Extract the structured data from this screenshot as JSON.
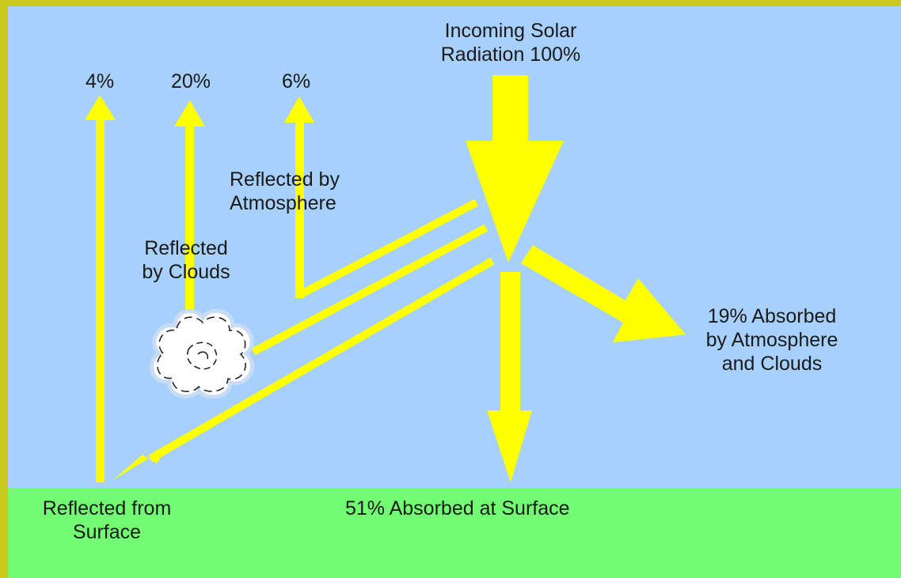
{
  "colors": {
    "frame": "#c8c81e",
    "sky": "#a7d0fc",
    "ground": "#74fb74",
    "arrow": "#ffff00",
    "text": "#1a1a1a"
  },
  "labels": {
    "incoming_line1": "Incoming Solar",
    "incoming_line2": "Radiation 100%",
    "pct_surface": "4%",
    "pct_clouds": "20%",
    "pct_atmosphere": "6%",
    "reflected_atmosphere_line1": "Reflected by",
    "reflected_atmosphere_line2": "Atmosphere",
    "reflected_clouds_line1": "Reflected",
    "reflected_clouds_line2": "by Clouds",
    "absorbed_atmo_line1": "19% Absorbed",
    "absorbed_atmo_line2": "by Atmosphere",
    "absorbed_atmo_line3": "and Clouds",
    "reflected_surface_line1": "Reflected from",
    "reflected_surface_line2": "Surface",
    "absorbed_surface": "51% Absorbed at Surface"
  },
  "icons": {
    "cloud": "cloud-icon"
  }
}
